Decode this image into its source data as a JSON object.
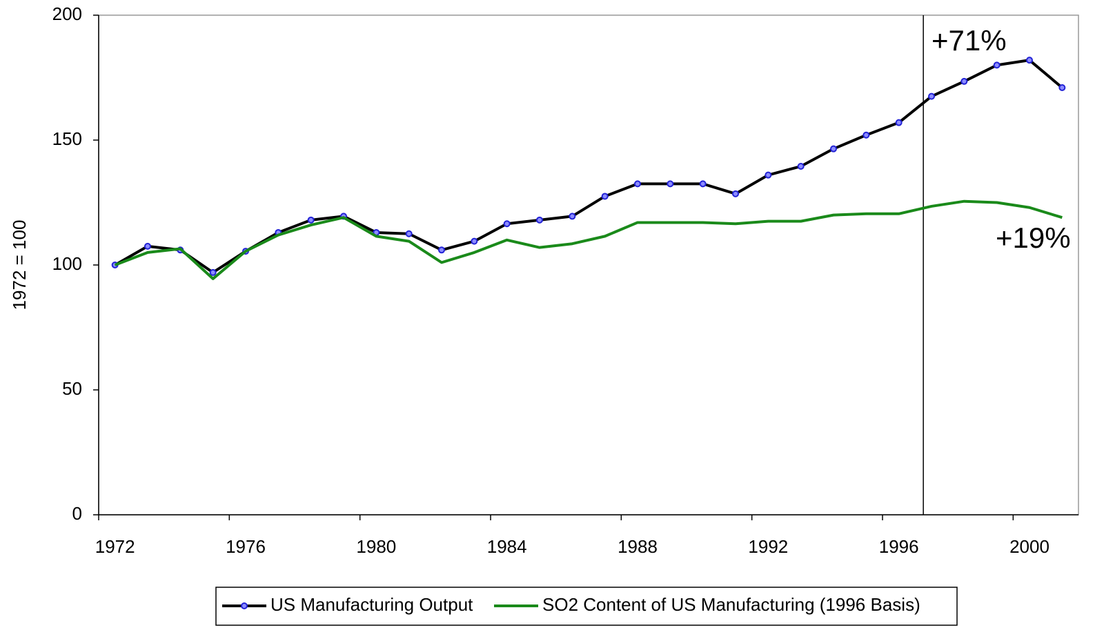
{
  "chart_data": {
    "type": "line",
    "y_label": "1972 = 100",
    "categories": [
      "1972",
      null,
      null,
      null,
      "1976",
      null,
      null,
      null,
      "1980",
      null,
      null,
      null,
      "1984",
      null,
      null,
      null,
      "1988",
      null,
      null,
      null,
      "1992",
      null,
      null,
      null,
      "1996",
      null,
      null,
      null,
      "2000",
      null
    ],
    "series": [
      {
        "name": "US Manufacturing Output",
        "color": "#000000",
        "marker_color": "#2323d6",
        "values": [
          100,
          107.5,
          106,
          97,
          105.5,
          113,
          118,
          119.5,
          113,
          112.5,
          106,
          109.5,
          116.5,
          118,
          119.5,
          127.5,
          132.5,
          132.5,
          132.5,
          128.5,
          136,
          139.5,
          146.5,
          152,
          157,
          167.5,
          173.5,
          180,
          182,
          171
        ]
      },
      {
        "name": "SO2 Content of US Manufacturing (1996 Basis)",
        "color": "#1a8a1a",
        "values": [
          100,
          105,
          106.5,
          94.5,
          105.5,
          112,
          116,
          119,
          111.5,
          109.5,
          101,
          105,
          110,
          107,
          108.5,
          111.5,
          117,
          117,
          117,
          116.5,
          117.5,
          117.5,
          120,
          120.5,
          120.5,
          123.5,
          125.5,
          125,
          123,
          119
        ]
      }
    ],
    "annotations": [
      {
        "text": "+71%",
        "color": "#000000"
      },
      {
        "text": "+19%",
        "color": "#1a8a1a"
      }
    ],
    "ylim": [
      0,
      200
    ],
    "yticks": [
      0,
      50,
      100,
      150,
      200
    ],
    "grid": false,
    "legend": "bottom"
  }
}
